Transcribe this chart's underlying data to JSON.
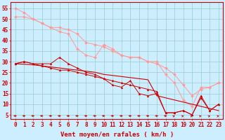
{
  "xlabel": "Vent moyen/en rafales ( km/h )",
  "ylabel_ticks": [
    5,
    10,
    15,
    20,
    25,
    30,
    35,
    40,
    45,
    50,
    55
  ],
  "xlim": [
    -0.5,
    23.5
  ],
  "ylim": [
    3,
    58
  ],
  "background_color": "#cceeff",
  "grid_color": "#99cccc",
  "line_color_dark": "#cc0000",
  "line_color_light": "#ff9999",
  "x": [
    0,
    1,
    2,
    3,
    4,
    5,
    6,
    7,
    8,
    9,
    10,
    11,
    12,
    13,
    14,
    15,
    16,
    17,
    18,
    19,
    20,
    21,
    22,
    23
  ],
  "series": {
    "trend_straight": [
      29,
      28.75,
      28.5,
      28.0,
      27.5,
      27.0,
      26.5,
      26.0,
      25.5,
      25.0,
      24.0,
      23.5,
      23.0,
      22.5,
      22.0,
      21.5,
      14.0,
      13.0,
      12.0,
      11.0,
      10.0,
      9.0,
      8.0,
      7.0
    ],
    "series_dark1": [
      29,
      30,
      29,
      28,
      27,
      26,
      26,
      25,
      24,
      23,
      22,
      21,
      20,
      19,
      18,
      17,
      16,
      6,
      6,
      7,
      5,
      13,
      7,
      10
    ],
    "series_dark2": [
      29,
      30,
      29,
      29,
      29,
      32,
      29,
      27,
      25,
      24,
      22,
      19,
      18,
      21,
      15,
      14,
      15,
      6,
      6,
      7,
      5,
      14,
      7,
      10
    ],
    "series_light1": [
      51,
      51,
      50,
      48,
      46,
      44,
      43,
      36,
      33,
      32,
      38,
      36,
      33,
      32,
      32,
      30,
      30,
      24,
      20,
      12,
      9,
      18,
      18,
      20
    ],
    "series_light2": [
      55,
      53,
      50,
      48,
      46,
      46,
      45,
      43,
      39,
      38,
      37,
      35,
      33,
      32,
      32,
      30,
      29,
      27,
      24,
      19,
      14,
      17,
      18,
      20
    ]
  },
  "wind_angles": [
    0,
    0,
    0,
    0,
    0,
    0,
    0,
    0,
    0,
    0,
    0,
    0,
    0,
    0,
    0,
    0,
    0,
    0,
    45,
    45,
    45,
    45,
    45,
    45
  ],
  "xlabel_fontsize": 6.5,
  "tick_fontsize": 5.5
}
